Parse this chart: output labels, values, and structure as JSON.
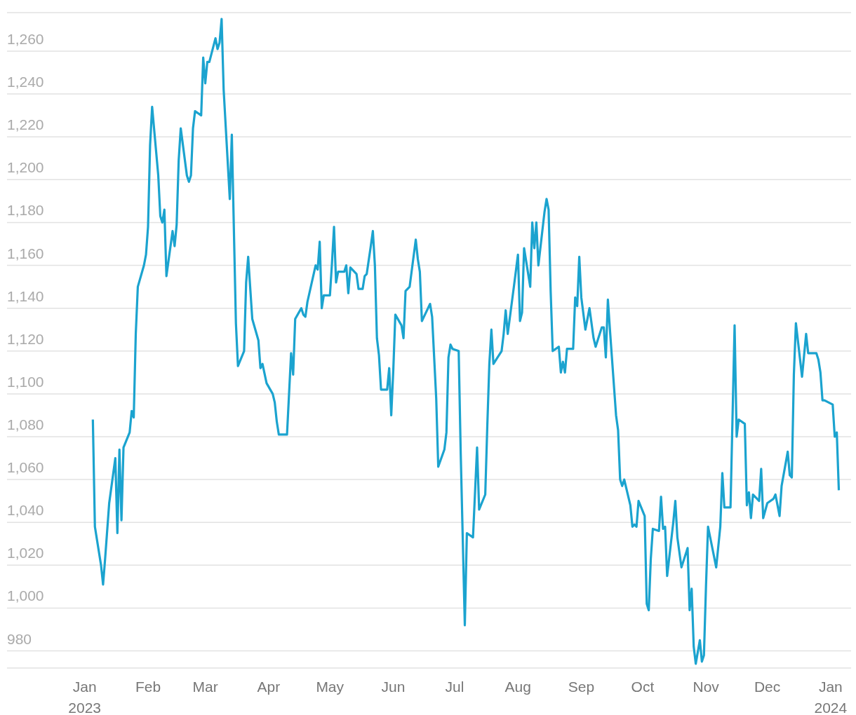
{
  "chart_data": {
    "type": "line",
    "xlim": [
      "2022-11-24",
      "2024-01-11"
    ],
    "ylim": [
      972,
      1278
    ],
    "yticks": [
      {
        "value": 980,
        "label": "980"
      },
      {
        "value": 1000,
        "label": "1,000"
      },
      {
        "value": 1020,
        "label": "1,020"
      },
      {
        "value": 1040,
        "label": "1,040"
      },
      {
        "value": 1060,
        "label": "1,060"
      },
      {
        "value": 1080,
        "label": "1,080"
      },
      {
        "value": 1100,
        "label": "1,100"
      },
      {
        "value": 1120,
        "label": "1,120"
      },
      {
        "value": 1140,
        "label": "1,140"
      },
      {
        "value": 1160,
        "label": "1,160"
      },
      {
        "value": 1180,
        "label": "1,180"
      },
      {
        "value": 1200,
        "label": "1,200"
      },
      {
        "value": 1220,
        "label": "1,220"
      },
      {
        "value": 1240,
        "label": "1,240"
      },
      {
        "value": 1260,
        "label": "1,260"
      }
    ],
    "xticks": [
      {
        "value": "2023-01-01",
        "label": "Jan 2023"
      },
      {
        "value": "2023-02-01",
        "label": "Feb"
      },
      {
        "value": "2023-03-01",
        "label": "Mar"
      },
      {
        "value": "2023-04-01",
        "label": "Apr"
      },
      {
        "value": "2023-05-01",
        "label": "May"
      },
      {
        "value": "2023-06-01",
        "label": "Jun"
      },
      {
        "value": "2023-07-01",
        "label": "Jul"
      },
      {
        "value": "2023-08-01",
        "label": "Aug"
      },
      {
        "value": "2023-09-01",
        "label": "Sep"
      },
      {
        "value": "2023-10-01",
        "label": "Oct"
      },
      {
        "value": "2023-11-01",
        "label": "Nov"
      },
      {
        "value": "2023-12-01",
        "label": "Dec"
      },
      {
        "value": "2024-01-01",
        "label": "Jan 2024"
      }
    ],
    "grid": "y",
    "legend": false,
    "marker": "none",
    "line_style": "solid",
    "x": [
      "2023-01-05",
      "2023-01-06",
      "2023-01-09",
      "2023-01-10",
      "2023-01-11",
      "2023-01-13",
      "2023-01-16",
      "2023-01-17",
      "2023-01-18",
      "2023-01-19",
      "2023-01-20",
      "2023-01-23",
      "2023-01-24",
      "2023-01-25",
      "2023-01-26",
      "2023-01-27",
      "2023-01-30",
      "2023-01-31",
      "2023-02-01",
      "2023-02-02",
      "2023-02-03",
      "2023-02-06",
      "2023-02-07",
      "2023-02-08",
      "2023-02-09",
      "2023-02-10",
      "2023-02-13",
      "2023-02-14",
      "2023-02-15",
      "2023-02-16",
      "2023-02-17",
      "2023-02-20",
      "2023-02-21",
      "2023-02-22",
      "2023-02-23",
      "2023-02-24",
      "2023-02-27",
      "2023-02-28",
      "2023-03-01",
      "2023-03-02",
      "2023-03-03",
      "2023-03-06",
      "2023-03-07",
      "2023-03-08",
      "2023-03-09",
      "2023-03-10",
      "2023-03-13",
      "2023-03-14",
      "2023-03-16",
      "2023-03-17",
      "2023-03-20",
      "2023-03-21",
      "2023-03-22",
      "2023-03-24",
      "2023-03-27",
      "2023-03-28",
      "2023-03-29",
      "2023-03-31",
      "2023-04-03",
      "2023-04-04",
      "2023-04-05",
      "2023-04-06",
      "2023-04-10",
      "2023-04-11",
      "2023-04-12",
      "2023-04-13",
      "2023-04-14",
      "2023-04-17",
      "2023-04-18",
      "2023-04-19",
      "2023-04-20",
      "2023-04-24",
      "2023-04-25",
      "2023-04-26",
      "2023-04-27",
      "2023-04-28",
      "2023-05-01",
      "2023-05-02",
      "2023-05-03",
      "2023-05-04",
      "2023-05-05",
      "2023-05-08",
      "2023-05-09",
      "2023-05-10",
      "2023-05-11",
      "2023-05-14",
      "2023-05-15",
      "2023-05-17",
      "2023-05-18",
      "2023-05-19",
      "2023-05-21",
      "2023-05-22",
      "2023-05-23",
      "2023-05-24",
      "2023-05-25",
      "2023-05-26",
      "2023-05-29",
      "2023-05-30",
      "2023-05-31",
      "2023-06-01",
      "2023-06-02",
      "2023-06-05",
      "2023-06-06",
      "2023-06-07",
      "2023-06-08",
      "2023-06-09",
      "2023-06-12",
      "2023-06-13",
      "2023-06-14",
      "2023-06-15",
      "2023-06-16",
      "2023-06-19",
      "2023-06-20",
      "2023-06-22",
      "2023-06-23",
      "2023-06-26",
      "2023-06-27",
      "2023-06-28",
      "2023-06-29",
      "2023-06-30",
      "2023-07-03",
      "2023-07-04",
      "2023-07-06",
      "2023-07-07",
      "2023-07-10",
      "2023-07-12",
      "2023-07-13",
      "2023-07-16",
      "2023-07-17",
      "2023-07-18",
      "2023-07-19",
      "2023-07-20",
      "2023-07-24",
      "2023-07-25",
      "2023-07-26",
      "2023-07-27",
      "2023-07-30",
      "2023-08-01",
      "2023-08-02",
      "2023-08-03",
      "2023-08-04",
      "2023-08-07",
      "2023-08-08",
      "2023-08-09",
      "2023-08-10",
      "2023-08-11",
      "2023-08-14",
      "2023-08-15",
      "2023-08-16",
      "2023-08-17",
      "2023-08-18",
      "2023-08-21",
      "2023-08-22",
      "2023-08-23",
      "2023-08-24",
      "2023-08-25",
      "2023-08-28",
      "2023-08-29",
      "2023-08-30",
      "2023-08-31",
      "2023-09-01",
      "2023-09-03",
      "2023-09-05",
      "2023-09-07",
      "2023-09-08",
      "2023-09-11",
      "2023-09-12",
      "2023-09-13",
      "2023-09-14",
      "2023-09-15",
      "2023-09-18",
      "2023-09-19",
      "2023-09-20",
      "2023-09-21",
      "2023-09-22",
      "2023-09-25",
      "2023-09-26",
      "2023-09-27",
      "2023-09-28",
      "2023-09-29",
      "2023-10-02",
      "2023-10-03",
      "2023-10-04",
      "2023-10-05",
      "2023-10-06",
      "2023-10-09",
      "2023-10-10",
      "2023-10-11",
      "2023-10-12",
      "2023-10-13",
      "2023-10-16",
      "2023-10-17",
      "2023-10-18",
      "2023-10-20",
      "2023-10-23",
      "2023-10-24",
      "2023-10-25",
      "2023-10-26",
      "2023-10-27",
      "2023-10-29",
      "2023-10-30",
      "2023-10-31",
      "2023-11-01",
      "2023-11-02",
      "2023-11-06",
      "2023-11-08",
      "2023-11-09",
      "2023-11-10",
      "2023-11-13",
      "2023-11-15",
      "2023-11-16",
      "2023-11-17",
      "2023-11-20",
      "2023-11-21",
      "2023-11-22",
      "2023-11-23",
      "2023-11-24",
      "2023-11-27",
      "2023-11-28",
      "2023-11-29",
      "2023-12-01",
      "2023-12-04",
      "2023-12-05",
      "2023-12-07",
      "2023-12-08",
      "2023-12-11",
      "2023-12-12",
      "2023-12-13",
      "2023-12-14",
      "2023-12-15",
      "2023-12-18",
      "2023-12-20",
      "2023-12-21",
      "2023-12-25",
      "2023-12-26",
      "2023-12-27",
      "2023-12-28",
      "2023-12-29",
      "2024-01-02",
      "2024-01-03",
      "2024-01-04",
      "2024-01-05"
    ],
    "series": [
      {
        "color": "#1ba3cf",
        "values": [
          1088,
          1038,
          1020,
          1011,
          1023,
          1049,
          1070,
          1035,
          1074,
          1041,
          1075,
          1082,
          1092,
          1089,
          1128,
          1150,
          1160,
          1165,
          1178,
          1216,
          1234,
          1202,
          1183,
          1180,
          1186,
          1155,
          1176,
          1169,
          1179,
          1209,
          1224,
          1202,
          1199,
          1202,
          1224,
          1232,
          1230,
          1257,
          1245,
          1255,
          1255,
          1266,
          1261,
          1264,
          1275,
          1242,
          1191,
          1221,
          1133,
          1113,
          1120,
          1152,
          1164,
          1135,
          1125,
          1112,
          1114,
          1105,
          1100,
          1096,
          1087,
          1081,
          1081,
          1100,
          1119,
          1109,
          1135,
          1140,
          1137,
          1136,
          1143,
          1160,
          1158,
          1171,
          1140,
          1146,
          1146,
          1161,
          1178,
          1152,
          1157,
          1157,
          1160,
          1147,
          1159,
          1156,
          1149,
          1149,
          1155,
          1156,
          1169,
          1176,
          1160,
          1126,
          1118,
          1102,
          1102,
          1112,
          1090,
          1111,
          1137,
          1132,
          1126,
          1148,
          1149,
          1150,
          1172,
          1163,
          1157,
          1134,
          1136,
          1142,
          1136,
          1098,
          1066,
          1074,
          1082,
          1117,
          1123,
          1121,
          1120,
          1072,
          992,
          1035,
          1033,
          1075,
          1046,
          1053,
          1085,
          1114,
          1130,
          1114,
          1120,
          1128,
          1139,
          1128,
          1150,
          1165,
          1134,
          1138,
          1168,
          1150,
          1180,
          1168,
          1180,
          1160,
          1185,
          1191,
          1186,
          1148,
          1120,
          1122,
          1110,
          1115,
          1110,
          1121,
          1121,
          1145,
          1141,
          1164,
          1145,
          1130,
          1140,
          1126,
          1122,
          1131,
          1131,
          1117,
          1144,
          1130,
          1090,
          1083,
          1060,
          1057,
          1060,
          1048,
          1038,
          1039,
          1038,
          1050,
          1043,
          1002,
          999,
          1023,
          1037,
          1036,
          1052,
          1037,
          1038,
          1015,
          1040,
          1050,
          1033,
          1019,
          1028,
          999,
          1009,
          982,
          974,
          985,
          975,
          978,
          1010,
          1038,
          1019,
          1038,
          1063,
          1047,
          1047,
          1132,
          1080,
          1088,
          1086,
          1048,
          1054,
          1042,
          1053,
          1050,
          1065,
          1042,
          1049,
          1051,
          1053,
          1043,
          1057,
          1073,
          1062,
          1061,
          1109,
          1133,
          1108,
          1128,
          1119,
          1119,
          1116,
          1110,
          1097,
          1097,
          1095,
          1080,
          1082,
          1055
        ]
      }
    ]
  }
}
